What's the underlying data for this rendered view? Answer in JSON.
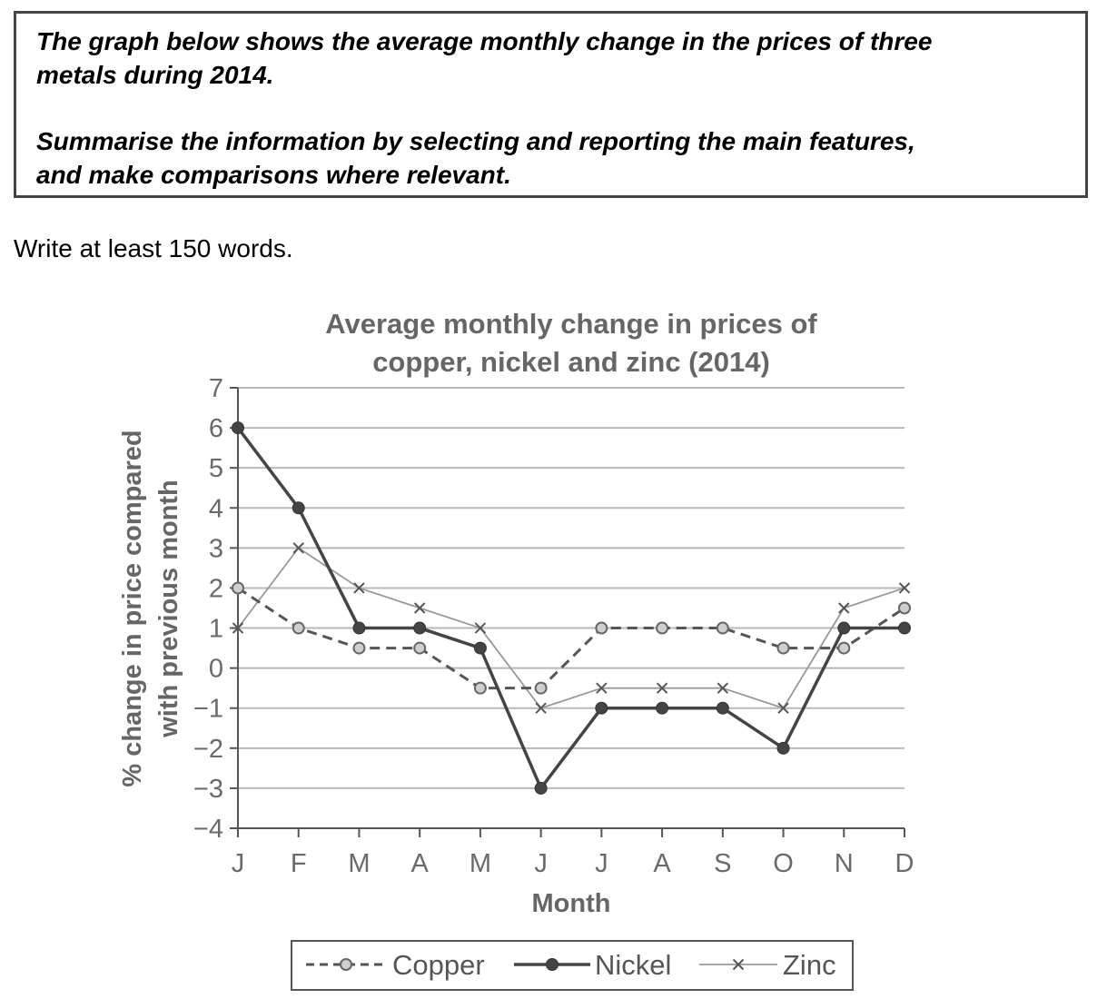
{
  "prompt": {
    "line1": "The graph below shows the average monthly change in the prices of three",
    "line2": "metals during 2014.",
    "line3": "Summarise the information by selecting and reporting the main features,",
    "line4": "and make comparisons where relevant."
  },
  "instruction": "Write at least 150 words.",
  "chart_data": {
    "type": "line",
    "title": [
      "Average monthly change in prices of",
      "copper, nickel and zinc (2014)"
    ],
    "xlabel": "Month",
    "ylabel": [
      "% change in price compared",
      "with previous month"
    ],
    "categories": [
      "J",
      "F",
      "M",
      "A",
      "M",
      "J",
      "J",
      "A",
      "S",
      "O",
      "N",
      "D"
    ],
    "ylim": [
      -4,
      7
    ],
    "yticks": [
      -4,
      -3,
      -2,
      -1,
      0,
      1,
      2,
      3,
      4,
      5,
      6,
      7
    ],
    "ytick_labels": [
      "−4",
      "−3",
      "−2",
      "−1",
      "0",
      "1",
      "2",
      "3",
      "4",
      "5",
      "6",
      "7"
    ],
    "grid": true,
    "legend_position": "bottom",
    "series": [
      {
        "name": "Copper",
        "style": "dashed-circle",
        "color": "#555555",
        "values": [
          2,
          1,
          0.5,
          0.5,
          -0.5,
          -0.5,
          1,
          1,
          1,
          0.5,
          0.5,
          1.5
        ]
      },
      {
        "name": "Nickel",
        "style": "solid-dot",
        "color": "#444444",
        "values": [
          6,
          4,
          1,
          1,
          0.5,
          -3,
          -1,
          -1,
          -1,
          -2,
          1,
          1
        ]
      },
      {
        "name": "Zinc",
        "style": "thin-cross",
        "color": "#999999",
        "values": [
          1,
          3,
          2,
          1.5,
          1,
          -1,
          -0.5,
          -0.5,
          -0.5,
          -1,
          1.5,
          2
        ]
      }
    ]
  }
}
